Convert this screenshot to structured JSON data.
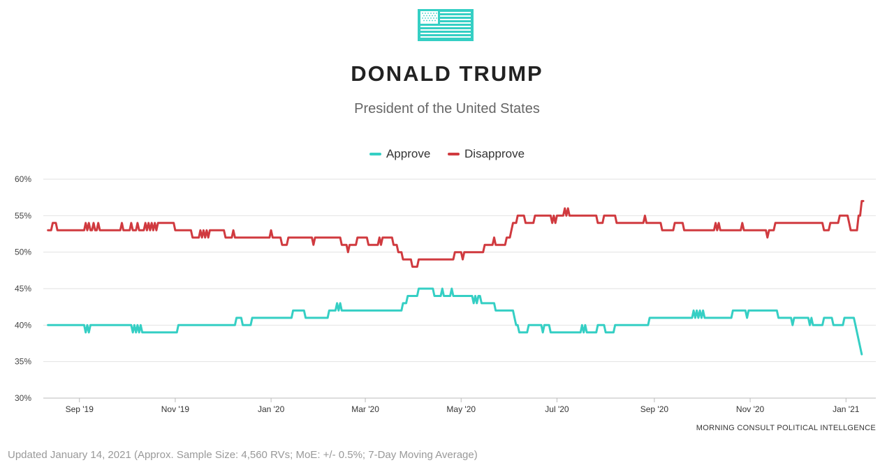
{
  "header": {
    "logo_icon": "us-flag-icon",
    "title": "DONALD TRUMP",
    "subtitle": "President of the United States"
  },
  "footer": {
    "source": "MORNING CONSULT POLITICAL INTELLGENCE",
    "note": "Updated January 14, 2021 (Approx. Sample Size: 4,560 RVs; MoE: +/- 0.5%; 7-Day Moving Average)"
  },
  "colors": {
    "approve": "#35cfc4",
    "disapprove": "#d03a3f",
    "grid": "#e2e2e2",
    "axis": "#bbbbbb"
  },
  "chart_data": {
    "type": "line",
    "title": "DONALD TRUMP",
    "subtitle": "President of the United States",
    "xlabel": "",
    "ylabel": "",
    "ylim": [
      30,
      60
    ],
    "xlim": [
      "2019-08-09",
      "2021-01-20"
    ],
    "y_ticks": [
      30,
      35,
      40,
      45,
      50,
      55,
      60
    ],
    "y_tick_labels": [
      "30%",
      "35%",
      "40%",
      "45%",
      "50%",
      "55%",
      "60%"
    ],
    "x_ticks": [
      {
        "date": "2019-09-01",
        "label": "Sep '19"
      },
      {
        "date": "2019-11-01",
        "label": "Nov '19"
      },
      {
        "date": "2020-01-01",
        "label": "Jan '20"
      },
      {
        "date": "2020-03-01",
        "label": "Mar '20"
      },
      {
        "date": "2020-05-01",
        "label": "May '20"
      },
      {
        "date": "2020-07-01",
        "label": "Jul '20"
      },
      {
        "date": "2020-09-01",
        "label": "Sep '20"
      },
      {
        "date": "2020-11-01",
        "label": "Nov '20"
      },
      {
        "date": "2021-01-01",
        "label": "Jan '21"
      }
    ],
    "grid": true,
    "legend_position": "top-center",
    "series": [
      {
        "name": "Approve",
        "color": "#35cfc4",
        "points": [
          [
            "2019-08-12",
            40
          ],
          [
            "2019-09-04",
            40
          ],
          [
            "2019-09-05",
            39
          ],
          [
            "2019-09-06",
            40
          ],
          [
            "2019-09-07",
            39
          ],
          [
            "2019-09-08",
            40
          ],
          [
            "2019-10-04",
            40
          ],
          [
            "2019-10-05",
            39
          ],
          [
            "2019-10-06",
            40
          ],
          [
            "2019-10-07",
            39
          ],
          [
            "2019-10-08",
            40
          ],
          [
            "2019-10-09",
            39
          ],
          [
            "2019-10-10",
            40
          ],
          [
            "2019-10-11",
            39
          ],
          [
            "2019-11-02",
            39
          ],
          [
            "2019-11-03",
            40
          ],
          [
            "2019-12-09",
            40
          ],
          [
            "2019-12-10",
            41
          ],
          [
            "2019-12-13",
            41
          ],
          [
            "2019-12-14",
            40
          ],
          [
            "2019-12-19",
            40
          ],
          [
            "2019-12-20",
            41
          ],
          [
            "2020-01-14",
            41
          ],
          [
            "2020-01-15",
            42
          ],
          [
            "2020-01-22",
            42
          ],
          [
            "2020-01-23",
            41
          ],
          [
            "2020-02-06",
            41
          ],
          [
            "2020-02-07",
            42
          ],
          [
            "2020-02-11",
            42
          ],
          [
            "2020-02-12",
            43
          ],
          [
            "2020-02-13",
            42
          ],
          [
            "2020-02-14",
            43
          ],
          [
            "2020-02-15",
            42
          ],
          [
            "2020-03-24",
            42
          ],
          [
            "2020-03-25",
            43
          ],
          [
            "2020-03-27",
            43
          ],
          [
            "2020-03-28",
            44
          ],
          [
            "2020-04-03",
            44
          ],
          [
            "2020-04-04",
            45
          ],
          [
            "2020-04-13",
            45
          ],
          [
            "2020-04-14",
            44
          ],
          [
            "2020-04-18",
            44
          ],
          [
            "2020-04-19",
            45
          ],
          [
            "2020-04-20",
            44
          ],
          [
            "2020-04-24",
            44
          ],
          [
            "2020-04-25",
            45
          ],
          [
            "2020-04-26",
            44
          ],
          [
            "2020-05-08",
            44
          ],
          [
            "2020-05-09",
            43
          ],
          [
            "2020-05-10",
            44
          ],
          [
            "2020-05-11",
            43
          ],
          [
            "2020-05-12",
            44
          ],
          [
            "2020-05-13",
            44
          ],
          [
            "2020-05-14",
            43
          ],
          [
            "2020-05-22",
            43
          ],
          [
            "2020-05-23",
            42
          ],
          [
            "2020-06-03",
            42
          ],
          [
            "2020-06-04",
            41
          ],
          [
            "2020-06-05",
            40
          ],
          [
            "2020-06-06",
            40
          ],
          [
            "2020-06-07",
            39
          ],
          [
            "2020-06-12",
            39
          ],
          [
            "2020-06-13",
            40
          ],
          [
            "2020-06-21",
            40
          ],
          [
            "2020-06-22",
            39
          ],
          [
            "2020-06-23",
            40
          ],
          [
            "2020-06-26",
            40
          ],
          [
            "2020-06-27",
            39
          ],
          [
            "2020-07-16",
            39
          ],
          [
            "2020-07-17",
            40
          ],
          [
            "2020-07-18",
            39
          ],
          [
            "2020-07-19",
            40
          ],
          [
            "2020-07-20",
            39
          ],
          [
            "2020-07-26",
            39
          ],
          [
            "2020-07-27",
            40
          ],
          [
            "2020-07-31",
            40
          ],
          [
            "2020-08-01",
            39
          ],
          [
            "2020-08-06",
            39
          ],
          [
            "2020-08-07",
            40
          ],
          [
            "2020-08-28",
            40
          ],
          [
            "2020-08-29",
            41
          ],
          [
            "2020-09-25",
            41
          ],
          [
            "2020-09-26",
            42
          ],
          [
            "2020-09-27",
            41
          ],
          [
            "2020-09-28",
            42
          ],
          [
            "2020-09-29",
            41
          ],
          [
            "2020-09-30",
            42
          ],
          [
            "2020-10-01",
            41
          ],
          [
            "2020-10-02",
            42
          ],
          [
            "2020-10-03",
            41
          ],
          [
            "2020-10-20",
            41
          ],
          [
            "2020-10-21",
            42
          ],
          [
            "2020-10-29",
            42
          ],
          [
            "2020-10-30",
            41
          ],
          [
            "2020-10-31",
            42
          ],
          [
            "2020-11-18",
            42
          ],
          [
            "2020-11-19",
            41
          ],
          [
            "2020-11-27",
            41
          ],
          [
            "2020-11-28",
            40
          ],
          [
            "2020-11-29",
            41
          ],
          [
            "2020-12-08",
            41
          ],
          [
            "2020-12-09",
            40
          ],
          [
            "2020-12-10",
            41
          ],
          [
            "2020-12-11",
            40
          ],
          [
            "2020-12-17",
            40
          ],
          [
            "2020-12-18",
            41
          ],
          [
            "2020-12-23",
            41
          ],
          [
            "2020-12-24",
            40
          ],
          [
            "2020-12-30",
            40
          ],
          [
            "2020-12-31",
            41
          ],
          [
            "2021-01-06",
            41
          ],
          [
            "2021-01-07",
            40
          ],
          [
            "2021-01-11",
            36
          ]
        ]
      },
      {
        "name": "Disapprove",
        "color": "#d03a3f",
        "points": [
          [
            "2019-08-12",
            53
          ],
          [
            "2019-08-14",
            53
          ],
          [
            "2019-08-15",
            54
          ],
          [
            "2019-08-17",
            54
          ],
          [
            "2019-08-18",
            53
          ],
          [
            "2019-09-04",
            53
          ],
          [
            "2019-09-05",
            54
          ],
          [
            "2019-09-06",
            53
          ],
          [
            "2019-09-07",
            54
          ],
          [
            "2019-09-08",
            53
          ],
          [
            "2019-09-09",
            53
          ],
          [
            "2019-09-10",
            54
          ],
          [
            "2019-09-11",
            53
          ],
          [
            "2019-09-12",
            53
          ],
          [
            "2019-09-13",
            54
          ],
          [
            "2019-09-14",
            53
          ],
          [
            "2019-09-27",
            53
          ],
          [
            "2019-09-28",
            54
          ],
          [
            "2019-09-29",
            53
          ],
          [
            "2019-10-03",
            53
          ],
          [
            "2019-10-04",
            54
          ],
          [
            "2019-10-05",
            53
          ],
          [
            "2019-10-07",
            53
          ],
          [
            "2019-10-08",
            54
          ],
          [
            "2019-10-09",
            53
          ],
          [
            "2019-10-12",
            53
          ],
          [
            "2019-10-13",
            54
          ],
          [
            "2019-10-14",
            53
          ],
          [
            "2019-10-15",
            54
          ],
          [
            "2019-10-16",
            53
          ],
          [
            "2019-10-17",
            54
          ],
          [
            "2019-10-18",
            53
          ],
          [
            "2019-10-19",
            54
          ],
          [
            "2019-10-20",
            53
          ],
          [
            "2019-10-21",
            54
          ],
          [
            "2019-10-22",
            54
          ],
          [
            "2019-10-31",
            54
          ],
          [
            "2019-11-01",
            53
          ],
          [
            "2019-11-11",
            53
          ],
          [
            "2019-11-12",
            52
          ],
          [
            "2019-11-16",
            52
          ],
          [
            "2019-11-17",
            53
          ],
          [
            "2019-11-18",
            52
          ],
          [
            "2019-11-19",
            53
          ],
          [
            "2019-11-20",
            52
          ],
          [
            "2019-11-21",
            53
          ],
          [
            "2019-11-22",
            52
          ],
          [
            "2019-11-23",
            53
          ],
          [
            "2019-12-02",
            53
          ],
          [
            "2019-12-03",
            52
          ],
          [
            "2019-12-07",
            52
          ],
          [
            "2019-12-08",
            53
          ],
          [
            "2019-12-09",
            52
          ],
          [
            "2019-12-31",
            52
          ],
          [
            "2020-01-01",
            53
          ],
          [
            "2020-01-02",
            52
          ],
          [
            "2020-01-07",
            52
          ],
          [
            "2020-01-08",
            51
          ],
          [
            "2020-01-11",
            51
          ],
          [
            "2020-01-12",
            52
          ],
          [
            "2020-01-27",
            52
          ],
          [
            "2020-01-28",
            51
          ],
          [
            "2020-01-29",
            52
          ],
          [
            "2020-02-14",
            52
          ],
          [
            "2020-02-15",
            51
          ],
          [
            "2020-02-18",
            51
          ],
          [
            "2020-02-19",
            50
          ],
          [
            "2020-02-20",
            51
          ],
          [
            "2020-02-24",
            51
          ],
          [
            "2020-02-25",
            52
          ],
          [
            "2020-03-02",
            52
          ],
          [
            "2020-03-03",
            51
          ],
          [
            "2020-03-09",
            51
          ],
          [
            "2020-03-10",
            52
          ],
          [
            "2020-03-11",
            51
          ],
          [
            "2020-03-12",
            52
          ],
          [
            "2020-03-18",
            52
          ],
          [
            "2020-03-19",
            51
          ],
          [
            "2020-03-21",
            51
          ],
          [
            "2020-03-22",
            50
          ],
          [
            "2020-03-24",
            50
          ],
          [
            "2020-03-25",
            49
          ],
          [
            "2020-03-30",
            49
          ],
          [
            "2020-03-31",
            48
          ],
          [
            "2020-04-03",
            48
          ],
          [
            "2020-04-04",
            49
          ],
          [
            "2020-04-26",
            49
          ],
          [
            "2020-04-27",
            50
          ],
          [
            "2020-05-01",
            50
          ],
          [
            "2020-05-02",
            49
          ],
          [
            "2020-05-03",
            50
          ],
          [
            "2020-05-15",
            50
          ],
          [
            "2020-05-16",
            51
          ],
          [
            "2020-05-21",
            51
          ],
          [
            "2020-05-22",
            52
          ],
          [
            "2020-05-23",
            51
          ],
          [
            "2020-05-29",
            51
          ],
          [
            "2020-05-30",
            52
          ],
          [
            "2020-06-01",
            52
          ],
          [
            "2020-06-02",
            53
          ],
          [
            "2020-06-03",
            54
          ],
          [
            "2020-06-05",
            54
          ],
          [
            "2020-06-06",
            55
          ],
          [
            "2020-06-10",
            55
          ],
          [
            "2020-06-11",
            54
          ],
          [
            "2020-06-16",
            54
          ],
          [
            "2020-06-17",
            55
          ],
          [
            "2020-06-27",
            55
          ],
          [
            "2020-06-28",
            54
          ],
          [
            "2020-06-29",
            55
          ],
          [
            "2020-06-30",
            54
          ],
          [
            "2020-07-01",
            55
          ],
          [
            "2020-07-05",
            55
          ],
          [
            "2020-07-06",
            56
          ],
          [
            "2020-07-07",
            55
          ],
          [
            "2020-07-08",
            56
          ],
          [
            "2020-07-09",
            55
          ],
          [
            "2020-07-26",
            55
          ],
          [
            "2020-07-27",
            54
          ],
          [
            "2020-07-30",
            54
          ],
          [
            "2020-07-31",
            55
          ],
          [
            "2020-08-07",
            55
          ],
          [
            "2020-08-08",
            54
          ],
          [
            "2020-08-25",
            54
          ],
          [
            "2020-08-26",
            55
          ],
          [
            "2020-08-27",
            54
          ],
          [
            "2020-09-05",
            54
          ],
          [
            "2020-09-06",
            53
          ],
          [
            "2020-09-13",
            53
          ],
          [
            "2020-09-14",
            54
          ],
          [
            "2020-09-19",
            54
          ],
          [
            "2020-09-20",
            53
          ],
          [
            "2020-10-09",
            53
          ],
          [
            "2020-10-10",
            54
          ],
          [
            "2020-10-11",
            53
          ],
          [
            "2020-10-12",
            54
          ],
          [
            "2020-10-13",
            53
          ],
          [
            "2020-10-26",
            53
          ],
          [
            "2020-10-27",
            54
          ],
          [
            "2020-10-28",
            53
          ],
          [
            "2020-11-11",
            53
          ],
          [
            "2020-11-12",
            52
          ],
          [
            "2020-11-13",
            53
          ],
          [
            "2020-11-16",
            53
          ],
          [
            "2020-11-17",
            54
          ],
          [
            "2020-12-17",
            54
          ],
          [
            "2020-12-18",
            53
          ],
          [
            "2020-12-21",
            53
          ],
          [
            "2020-12-22",
            54
          ],
          [
            "2020-12-27",
            54
          ],
          [
            "2020-12-28",
            55
          ],
          [
            "2021-01-02",
            55
          ],
          [
            "2021-01-03",
            54
          ],
          [
            "2021-01-04",
            53
          ],
          [
            "2021-01-08",
            53
          ],
          [
            "2021-01-09",
            55
          ],
          [
            "2021-01-10",
            55
          ],
          [
            "2021-01-11",
            57
          ],
          [
            "2021-01-12",
            57
          ]
        ]
      }
    ]
  }
}
